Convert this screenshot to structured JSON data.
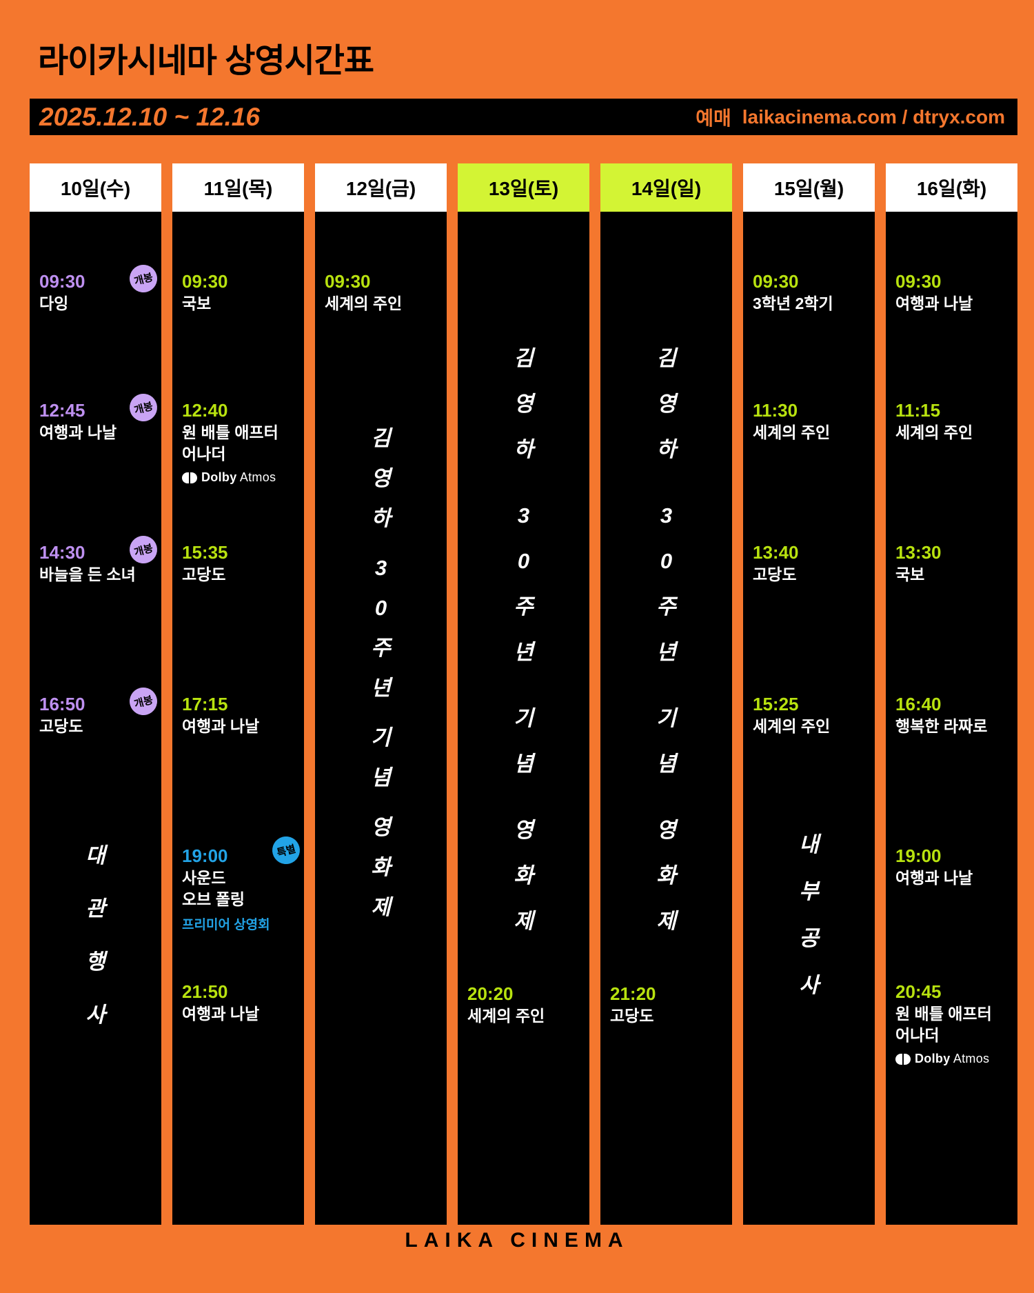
{
  "page": {
    "title": "라이카시네마 상영시간표",
    "date_range": "2025.12.10 ~ 12.16",
    "booking_label": "예매",
    "booking_sites": "laikacinema.com / dtryx.com",
    "footer": "LAIKA CINEMA"
  },
  "colors": {
    "background_orange": "#f4772e",
    "column_black": "#000000",
    "header_white": "#ffffff",
    "weekend_green": "#d3f434",
    "time_green": "#b8e20f",
    "time_purple": "#be90f0",
    "badge_purple": "#c9a4f4",
    "special_blue": "#22a3e6"
  },
  "dolby": {
    "word1": "Dolby",
    "word2": "Atmos"
  },
  "columns": [
    {
      "header": "10일(수)",
      "highlight": false,
      "entries": [
        {
          "time": "09:30",
          "title": "다잉",
          "badge": "개봉"
        },
        {
          "time": "12:45",
          "title": "여행과 나날",
          "badge": "개봉"
        },
        {
          "time": "14:30",
          "title": "바늘을 든 소녀",
          "badge": "개봉"
        },
        {
          "time": "16:50",
          "title": "고당도",
          "badge": "개봉"
        }
      ],
      "vertical": "대관행사"
    },
    {
      "header": "11일(목)",
      "highlight": false,
      "entries": [
        {
          "time": "09:30",
          "title": "국보"
        },
        {
          "time": "12:40",
          "title": "원 배틀 애프터\n어나더",
          "dolby": true
        },
        {
          "time": "15:35",
          "title": "고당도"
        },
        {
          "time": "17:15",
          "title": "여행과 나날"
        },
        {
          "time": "19:00",
          "title": "사운드\n오브 폴링",
          "badge": "특별",
          "subtitle": "프리미어 상영회"
        },
        {
          "time": "21:50",
          "title": "여행과 나날"
        }
      ]
    },
    {
      "header": "12일(금)",
      "highlight": false,
      "entries": [
        {
          "time": "09:30",
          "title": "세계의 주인"
        }
      ],
      "vertical": "김영하 30주년 기념 영화제"
    },
    {
      "header": "13일(토)",
      "highlight": true,
      "vertical": "김영하 30주년 기념 영화제",
      "entries": [
        {
          "time": "20:20",
          "title": "세계의 주인"
        }
      ]
    },
    {
      "header": "14일(일)",
      "highlight": true,
      "vertical": "김영하 30주년 기념 영화제",
      "entries": [
        {
          "time": "21:20",
          "title": "고당도"
        }
      ]
    },
    {
      "header": "15일(월)",
      "highlight": false,
      "entries": [
        {
          "time": "09:30",
          "title": "3학년 2학기"
        },
        {
          "time": "11:30",
          "title": "세계의 주인"
        },
        {
          "time": "13:40",
          "title": "고당도"
        },
        {
          "time": "15:25",
          "title": "세계의 주인"
        }
      ],
      "vertical": "내부공사"
    },
    {
      "header": "16일(화)",
      "highlight": false,
      "entries": [
        {
          "time": "09:30",
          "title": "여행과 나날"
        },
        {
          "time": "11:15",
          "title": "세계의 주인"
        },
        {
          "time": "13:30",
          "title": "국보"
        },
        {
          "time": "16:40",
          "title": "행복한 라짜로"
        },
        {
          "time": "19:00",
          "title": "여행과 나날"
        },
        {
          "time": "20:45",
          "title": "원 배틀 애프터\n어나더",
          "dolby": true
        }
      ]
    }
  ]
}
